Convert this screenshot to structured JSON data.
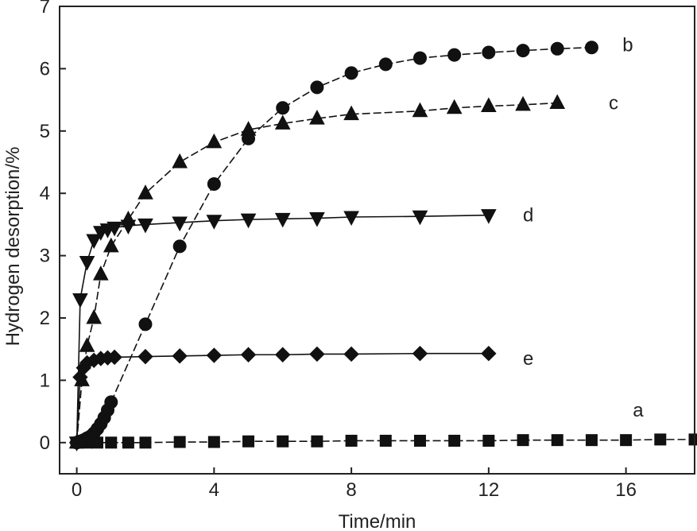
{
  "chart_data": {
    "type": "line",
    "title": "",
    "xlabel": "Time/min",
    "ylabel": "Hydrogen desorption/%",
    "xlim": [
      -0.5,
      18
    ],
    "ylim": [
      -0.5,
      7
    ],
    "xticks": [
      0,
      4,
      8,
      12,
      16
    ],
    "yticks": [
      0,
      1,
      2,
      3,
      4,
      5,
      6,
      7
    ],
    "xtick_labels": [
      "0",
      "4",
      "8",
      "12",
      "16"
    ],
    "ytick_labels": [
      "0",
      "1",
      "2",
      "3",
      "4",
      "5",
      "6",
      "7"
    ],
    "grid": false,
    "series": [
      {
        "name": "a",
        "marker": "square",
        "x": [
          0,
          0.3,
          0.6,
          1,
          1.5,
          2,
          3,
          4,
          5,
          6,
          7,
          8,
          9,
          10,
          11,
          12,
          13,
          14,
          15,
          16,
          17,
          18
        ],
        "y": [
          0,
          0,
          0,
          0,
          0,
          0,
          0.01,
          0.01,
          0.02,
          0.02,
          0.02,
          0.03,
          0.03,
          0.03,
          0.03,
          0.03,
          0.04,
          0.04,
          0.04,
          0.04,
          0.05,
          0.05
        ],
        "label_at": [
          16.2,
          0.42
        ]
      },
      {
        "name": "b",
        "marker": "circle",
        "x": [
          0,
          0.1,
          0.2,
          0.3,
          0.4,
          0.5,
          0.6,
          0.7,
          0.8,
          0.9,
          1,
          2,
          3,
          4,
          5,
          6,
          7,
          8,
          9,
          10,
          11,
          12,
          13,
          14,
          15
        ],
        "y": [
          0,
          0.02,
          0.04,
          0.07,
          0.1,
          0.15,
          0.22,
          0.3,
          0.4,
          0.52,
          0.65,
          1.9,
          3.15,
          4.15,
          4.88,
          5.37,
          5.7,
          5.93,
          6.07,
          6.17,
          6.22,
          6.26,
          6.29,
          6.32,
          6.34
        ],
        "label_at": [
          15.9,
          6.28
        ]
      },
      {
        "name": "c",
        "marker": "triangle-up",
        "x": [
          0,
          0.15,
          0.3,
          0.5,
          0.7,
          1,
          1.5,
          2,
          3,
          4,
          5,
          6,
          7,
          8,
          10,
          11,
          12,
          13,
          14
        ],
        "y": [
          0,
          1,
          1.55,
          2,
          2.7,
          3.15,
          3.58,
          4,
          4.5,
          4.82,
          5.02,
          5.12,
          5.2,
          5.27,
          5.32,
          5.37,
          5.4,
          5.42,
          5.45
        ],
        "label_at": [
          15.5,
          5.35
        ]
      },
      {
        "name": "d",
        "marker": "triangle-down",
        "x": [
          0,
          0.1,
          0.3,
          0.5,
          0.7,
          0.9,
          1.1,
          1.5,
          2,
          3,
          4,
          5,
          6,
          7,
          8,
          10,
          12
        ],
        "y": [
          0,
          2.3,
          2.9,
          3.25,
          3.38,
          3.42,
          3.45,
          3.48,
          3.5,
          3.53,
          3.56,
          3.58,
          3.59,
          3.6,
          3.62,
          3.63,
          3.65
        ],
        "label_at": [
          13.0,
          3.55
        ]
      },
      {
        "name": "e",
        "marker": "diamond",
        "x": [
          0,
          0.1,
          0.2,
          0.3,
          0.5,
          0.7,
          0.9,
          1.1,
          2,
          3,
          4,
          5,
          6,
          7,
          8,
          10,
          12
        ],
        "y": [
          0,
          1.05,
          1.2,
          1.28,
          1.32,
          1.35,
          1.36,
          1.37,
          1.38,
          1.39,
          1.4,
          1.41,
          1.41,
          1.42,
          1.42,
          1.43,
          1.43
        ],
        "label_at": [
          13.0,
          1.25
        ]
      }
    ]
  }
}
